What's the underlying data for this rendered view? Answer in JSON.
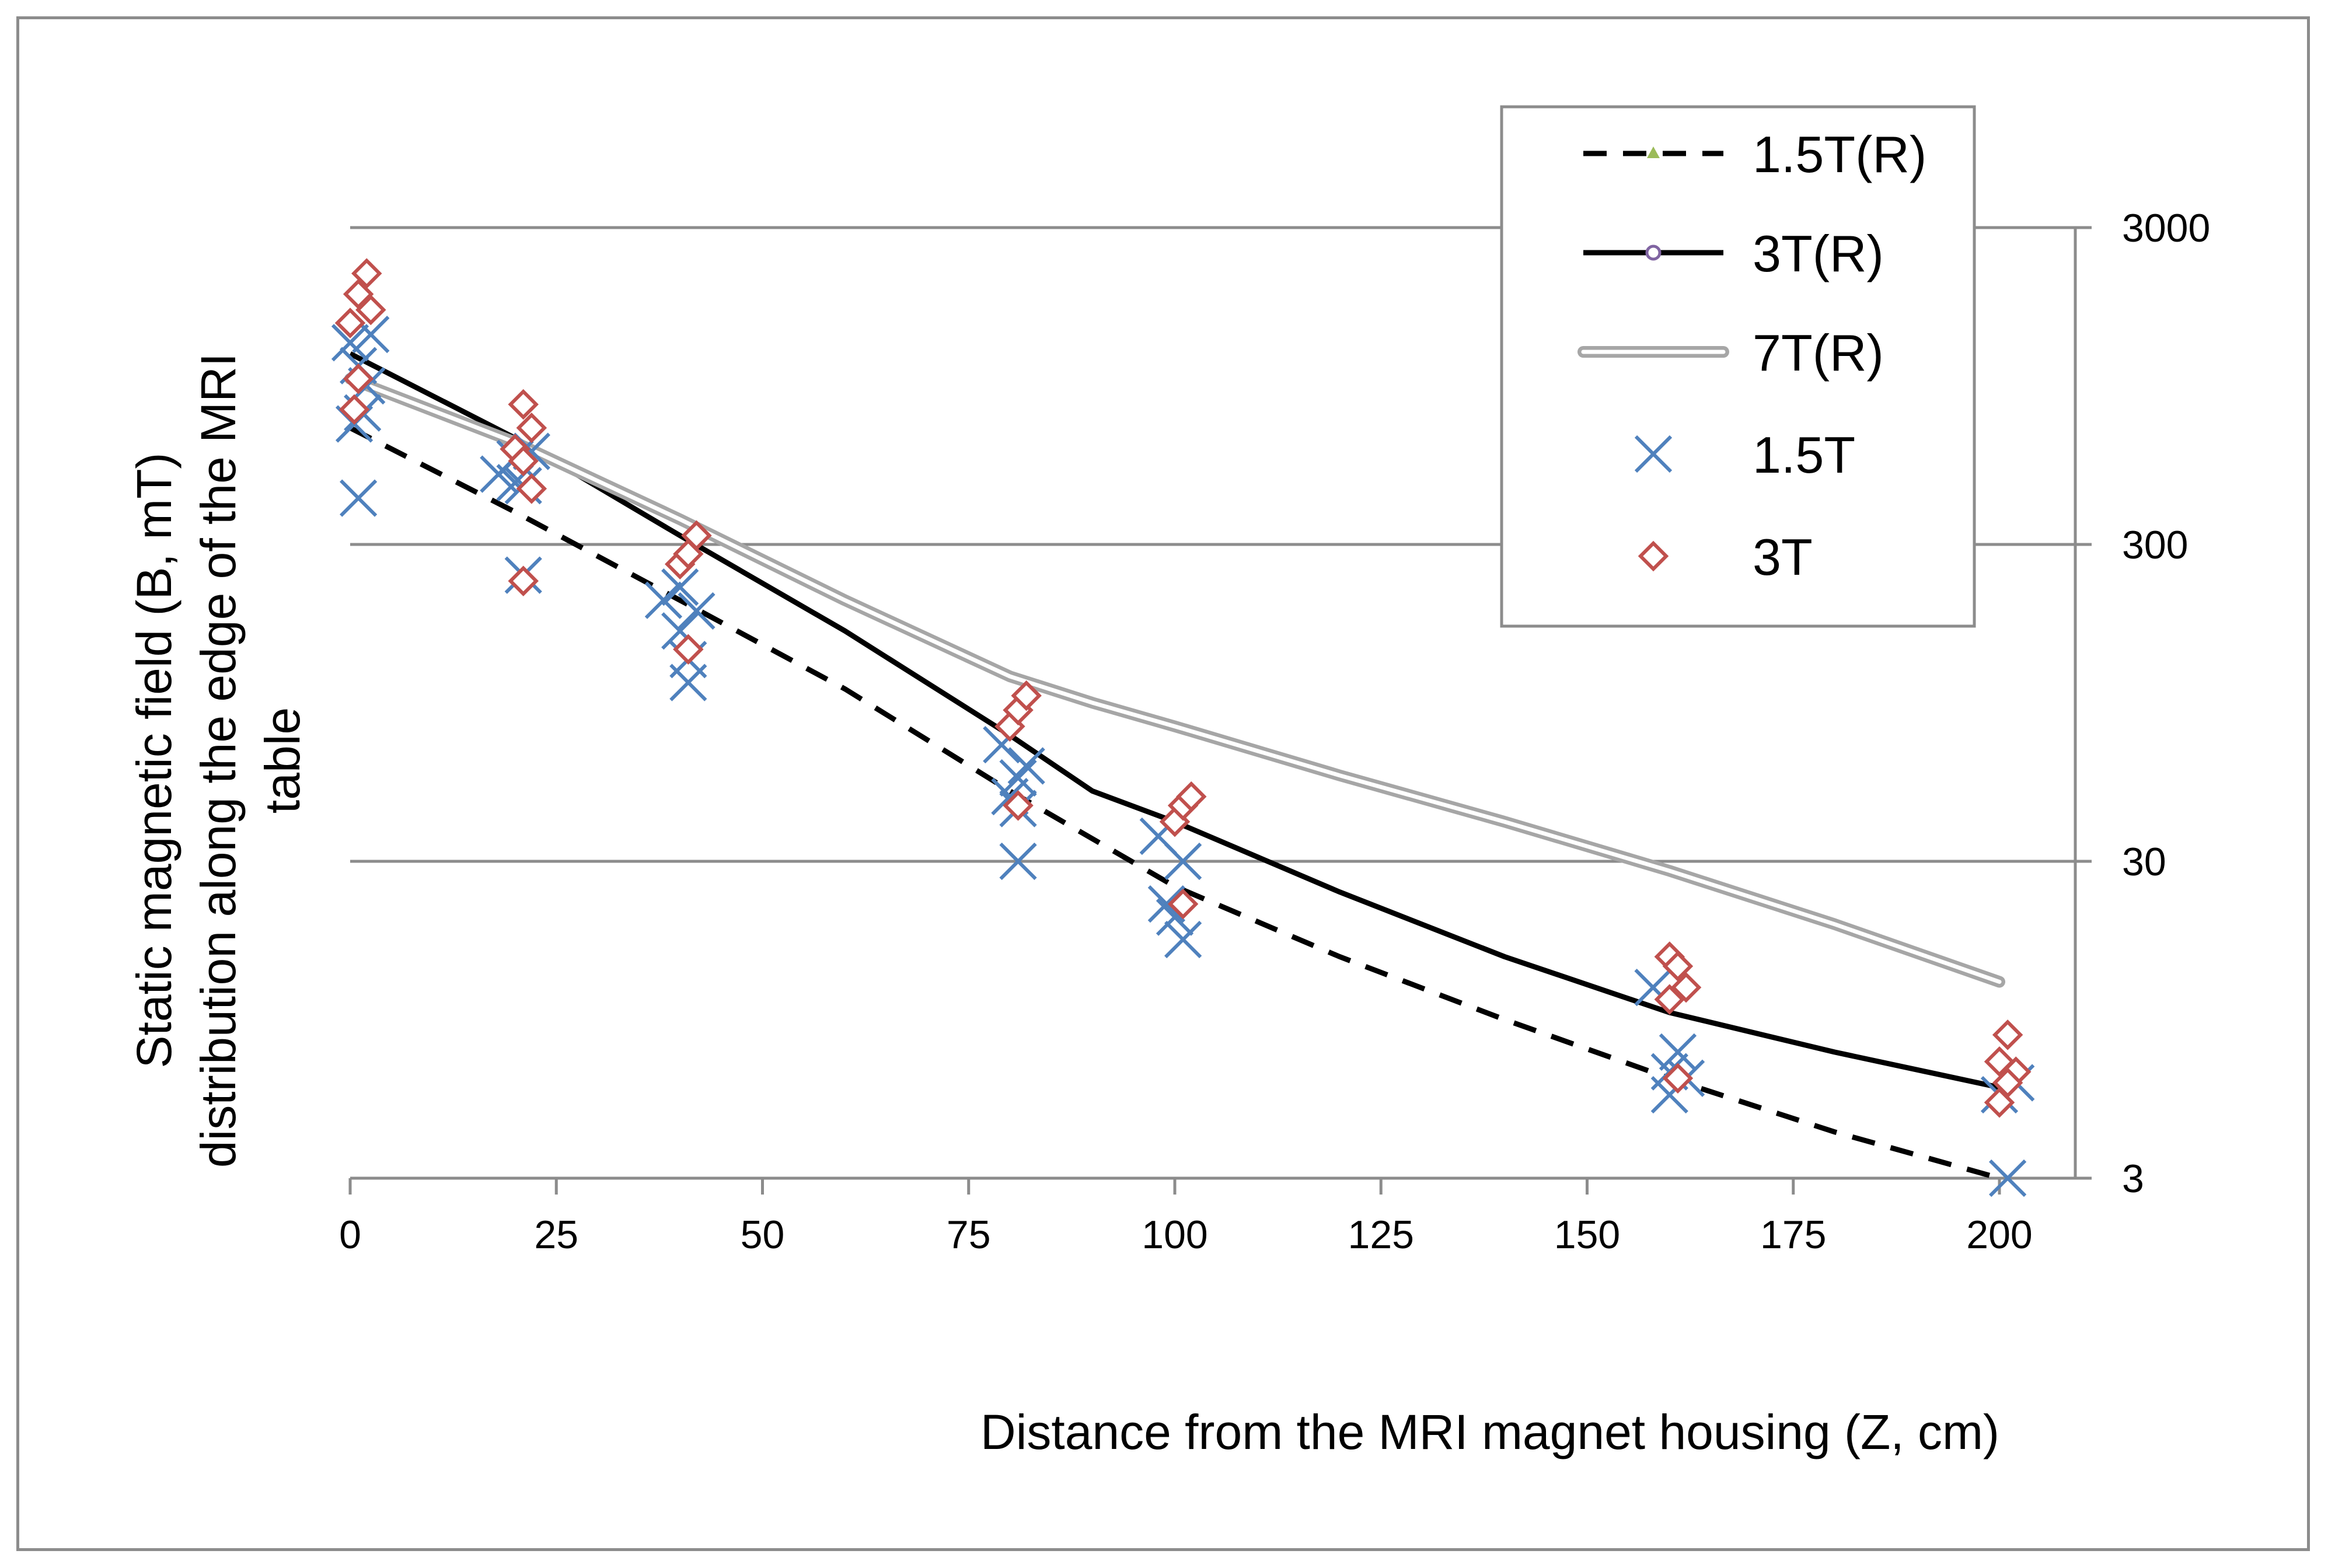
{
  "chart_data": {
    "type": "scatter",
    "title": "",
    "xlabel": "Distance from the MRI magnet housing (Z, cm)",
    "ylabel_lines": [
      "Static magnetic field (B, mT)",
      "distribution along the edge of the MRI",
      "table"
    ],
    "x_ticks": [
      "0",
      "25",
      "50",
      "75",
      "100",
      "125",
      "150",
      "175",
      "200"
    ],
    "x_tick_values": [
      0,
      25,
      50,
      75,
      100,
      125,
      150,
      175,
      200
    ],
    "y_ticks": [
      "3",
      "30",
      "300",
      "3000"
    ],
    "y_tick_values": [
      3,
      30,
      300,
      3000
    ],
    "xlim": [
      0,
      210
    ],
    "ylim": [
      3,
      3000
    ],
    "y_scale": "log",
    "grid": true,
    "legend_position": "top-right",
    "colors": {
      "line_15": "#000000",
      "line_3": "#000000",
      "line_7": "#a6a6a6",
      "marker_15": "#4f81bd",
      "marker_3": "#c0504d",
      "marker_line_15": "#9bbb59",
      "marker_line_3": "#8064a2",
      "grid": "#8c8c8c"
    },
    "series": [
      {
        "name": "1.5T(R)",
        "kind": "line",
        "style": "dashed",
        "x": [
          0,
          20,
          40,
          60,
          80,
          100,
          120,
          140,
          160,
          180,
          200
        ],
        "y": [
          700,
          380,
          200,
          105,
          50,
          25,
          15,
          9.5,
          6.2,
          4.2,
          3
        ]
      },
      {
        "name": "3T(R)",
        "kind": "line",
        "style": "solid",
        "x": [
          0,
          20,
          40,
          60,
          80,
          90,
          100,
          120,
          140,
          160,
          180,
          200
        ],
        "y": [
          1200,
          650,
          320,
          160,
          75,
          50,
          40,
          24,
          15,
          10,
          7.5,
          5.8
        ]
      },
      {
        "name": "7T(R)",
        "kind": "line",
        "style": "double",
        "x": [
          0,
          20,
          40,
          60,
          80,
          90,
          100,
          120,
          140,
          160,
          180,
          200
        ],
        "y": [
          1000,
          630,
          360,
          200,
          115,
          95,
          80,
          56,
          40,
          28,
          19,
          12.5
        ]
      },
      {
        "name": "1.5T",
        "kind": "markers",
        "marker": "x",
        "x": [
          0,
          0.5,
          1,
          1.5,
          2,
          0,
          1,
          19,
          20,
          21,
          22,
          20,
          21,
          39,
          40,
          41,
          42,
          41,
          40,
          80,
          81,
          82,
          79,
          80,
          81,
          100,
          101,
          99,
          100,
          101,
          160,
          161,
          162,
          159,
          160,
          200,
          201,
          202
        ],
        "y": [
          1200,
          1000,
          850,
          750,
          1300,
          650,
          380,
          480,
          520,
          430,
          550,
          440,
          230,
          180,
          150,
          140,
          170,
          125,
          210,
          60,
          50,
          45,
          52,
          40,
          32,
          35,
          28,
          22,
          19,
          16,
          12,
          8.5,
          6.5,
          5.8,
          5,
          3.6,
          3,
          5.5
        ],
        "x_plot": [
          0,
          1,
          2,
          1.5,
          2.5,
          0.5,
          1,
          18,
          20,
          21,
          22,
          20,
          21,
          38,
          40,
          41,
          42,
          41,
          40,
          79,
          81,
          82,
          80,
          81,
          81,
          98,
          101,
          99,
          100,
          101,
          158,
          161,
          162,
          160,
          160,
          200,
          201,
          202
        ],
        "y_plot": [
          1300,
          1100,
          950,
          780,
          1380,
          720,
          420,
          500,
          560,
          460,
          590,
          470,
          240,
          200,
          160,
          130,
          185,
          110,
          220,
          70,
          55,
          60,
          48,
          44,
          30,
          36,
          30,
          22,
          20,
          17,
          12,
          7.5,
          6.2,
          6.5,
          5.5,
          5.5,
          3,
          6
        ]
      },
      {
        "name": "3T",
        "kind": "markers",
        "marker": "diamond",
        "x": [
          0,
          1,
          2,
          2.5,
          1,
          0.5,
          21,
          22,
          20,
          21,
          22,
          21,
          40,
          41,
          42,
          41,
          80,
          81,
          82,
          81,
          100,
          101,
          102,
          101,
          160,
          161,
          162,
          160,
          161,
          200,
          201,
          202,
          200,
          201
        ],
        "y": [
          1500,
          1850,
          2150,
          1650,
          1000,
          1000,
          830,
          700,
          600,
          550,
          450,
          230,
          260,
          280,
          320,
          140,
          80,
          90,
          100,
          45,
          40,
          45,
          48,
          22,
          15,
          14,
          12,
          11,
          6.2,
          7,
          8.5,
          6.5,
          5.2,
          6
        ],
        "x_plot": [
          0,
          1,
          2,
          2.5,
          1,
          0.5,
          21,
          22,
          20,
          21,
          22,
          21,
          40,
          41,
          42,
          41,
          80,
          81,
          82,
          81,
          100,
          101,
          102,
          101,
          160,
          161,
          162,
          160,
          161,
          200,
          201,
          202,
          200,
          201
        ],
        "y_plot": [
          1500,
          1850,
          2150,
          1650,
          1000,
          800,
          830,
          700,
          600,
          550,
          450,
          230,
          260,
          280,
          320,
          140,
          80,
          90,
          100,
          45,
          40,
          45,
          48,
          22,
          15,
          14,
          12,
          11,
          6.2,
          7,
          8.5,
          6.5,
          5.2,
          6
        ]
      }
    ]
  }
}
